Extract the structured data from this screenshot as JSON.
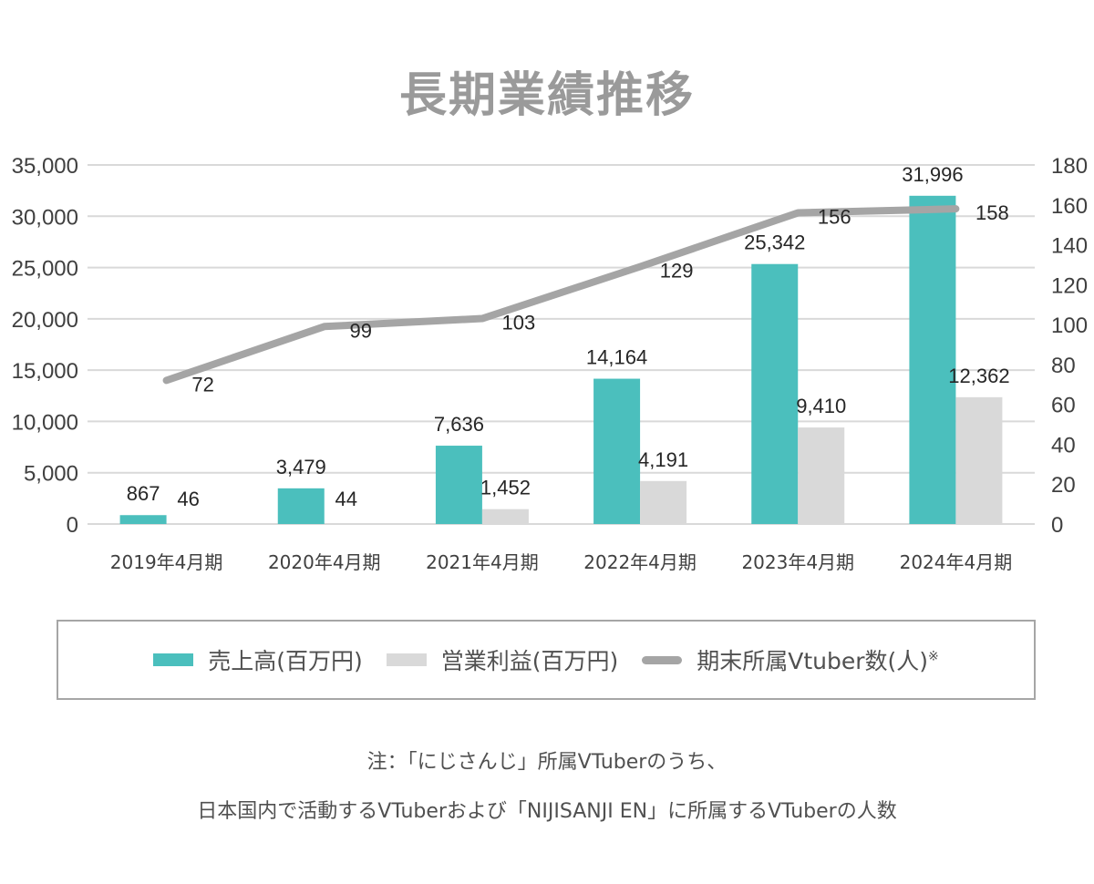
{
  "title": "長期業績推移",
  "chart_data": {
    "type": "bar",
    "title": "長期業績推移",
    "categories": [
      "2019年4月期",
      "2020年4月期",
      "2021年4月期",
      "2022年4月期",
      "2023年4月期",
      "2024年4月期"
    ],
    "series": [
      {
        "name": "売上高(百万円)",
        "kind": "bar",
        "axis": "left",
        "color": "#4bbfbd",
        "values": [
          867,
          3479,
          7636,
          14164,
          25342,
          31996
        ],
        "labels": [
          "867",
          "3,479",
          "7,636",
          "14,164",
          "25,342",
          "31,996"
        ]
      },
      {
        "name": "営業利益(百万円)",
        "kind": "bar",
        "axis": "left",
        "color": "#d9d9d9",
        "values": [
          null,
          null,
          1452,
          4191,
          9410,
          12362
        ],
        "labels": [
          "",
          "",
          "1,452",
          "4,191",
          "9,410",
          "12,362"
        ]
      },
      {
        "name": "期末所属Vtuber数(人)",
        "kind": "line",
        "axis": "right",
        "color": "#a5a5a5",
        "values": [
          72,
          99,
          103,
          129,
          156,
          158
        ],
        "labels": [
          "72",
          "99",
          "103",
          "129",
          "156",
          "158"
        ]
      }
    ],
    "extra_labels": [
      "46",
      "44"
    ],
    "left_axis": {
      "min": 0,
      "max": 35000,
      "step": 5000,
      "ticks": [
        "0",
        "5,000",
        "10,000",
        "15,000",
        "20,000",
        "25,000",
        "30,000",
        "35,000"
      ]
    },
    "right_axis": {
      "min": 0,
      "max": 180,
      "step": 20,
      "ticks": [
        "0",
        "20",
        "40",
        "60",
        "80",
        "100",
        "120",
        "140",
        "160",
        "180"
      ]
    },
    "grid": true,
    "legend_position": "bottom"
  },
  "legend": {
    "items": [
      {
        "label": "売上高(百万円)",
        "color": "#4bbfbd",
        "kind": "bar"
      },
      {
        "label": "営業利益(百万円)",
        "color": "#d9d9d9",
        "kind": "bar"
      },
      {
        "label": "期末所属Vtuber数(人)",
        "suffix": "※",
        "color": "#a5a5a5",
        "kind": "line"
      }
    ]
  },
  "notes": {
    "line1": "注：「にじさんじ」所属VTuberのうち、",
    "line2": "日本国内で活動するVTuberおよび「NIJISANJI EN」に所属するVTuberの人数"
  }
}
